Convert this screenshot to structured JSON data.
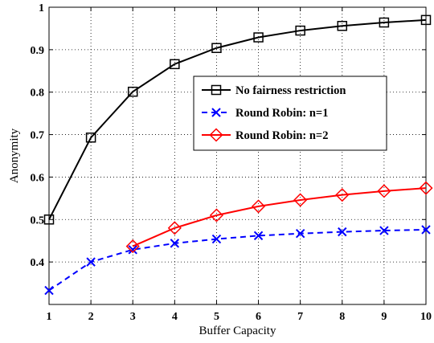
{
  "chart_data": {
    "type": "line",
    "title": "",
    "xlabel": "Buffer Capacity",
    "ylabel": "Anonymity",
    "xlim": [
      1,
      10
    ],
    "ylim": [
      0.3,
      1.0
    ],
    "x_ticks": [
      1,
      2,
      3,
      4,
      5,
      6,
      7,
      8,
      9,
      10
    ],
    "y_ticks": [
      0.4,
      0.5,
      0.6,
      0.7,
      0.8,
      0.9,
      1.0
    ],
    "y_tick_labels": [
      "0.4",
      "0.5",
      "0.6",
      "0.7",
      "0.8",
      "0.9",
      "1"
    ],
    "grid": true,
    "legend_position": "upper-right",
    "series": [
      {
        "name": "No fairness restriction",
        "color": "#000000",
        "line_style": "solid",
        "marker": "square",
        "x": [
          1,
          2,
          3,
          4,
          5,
          6,
          7,
          8,
          9,
          10
        ],
        "y": [
          0.5,
          0.693,
          0.801,
          0.866,
          0.904,
          0.929,
          0.945,
          0.956,
          0.964,
          0.97
        ]
      },
      {
        "name": "Round Robin: n=1",
        "color": "#0000ff",
        "line_style": "dashed",
        "marker": "x",
        "x": [
          1,
          2,
          3,
          4,
          5,
          6,
          7,
          8,
          9,
          10
        ],
        "y": [
          0.333,
          0.4,
          0.429,
          0.444,
          0.454,
          0.462,
          0.467,
          0.471,
          0.474,
          0.476
        ]
      },
      {
        "name": "Round Robin: n=2",
        "color": "#ff0000",
        "line_style": "solid",
        "marker": "diamond",
        "x": [
          3,
          4,
          5,
          6,
          7,
          8,
          9,
          10
        ],
        "y": [
          0.437,
          0.48,
          0.51,
          0.531,
          0.546,
          0.558,
          0.567,
          0.574
        ]
      }
    ]
  }
}
